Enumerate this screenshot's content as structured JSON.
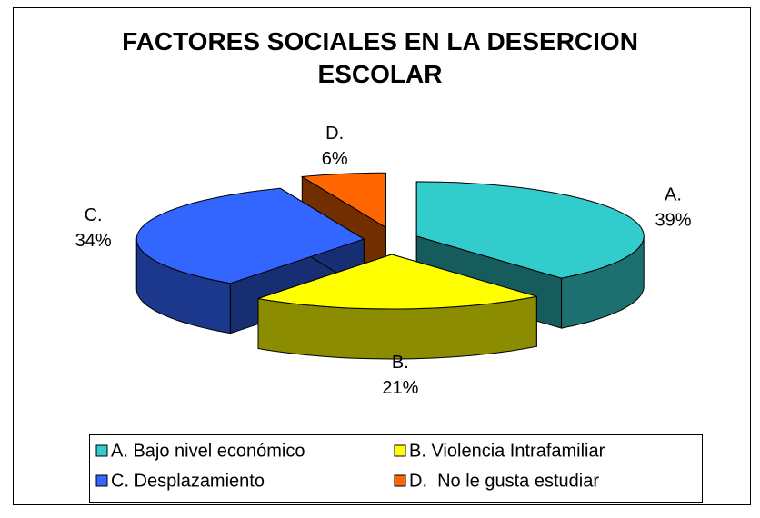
{
  "chart_data": {
    "type": "pie3d",
    "title": "FACTORES SOCIALES EN LA DESERCION ESCOLAR",
    "categories": [
      "A. Bajo nivel económico",
      "B. Violencia Intrafamiliar",
      "C. Desplazamiento",
      "D.  No le gusta estudiar"
    ],
    "label_names": [
      "A.",
      "B.",
      "C.",
      "D."
    ],
    "values": [
      39,
      21,
      34,
      6
    ],
    "value_labels": [
      "39%",
      "21%",
      "34%",
      "6%"
    ],
    "colors": [
      "#33cccc",
      "#ffff00",
      "#3366ff",
      "#ff6600"
    ],
    "legend": "bottom"
  }
}
